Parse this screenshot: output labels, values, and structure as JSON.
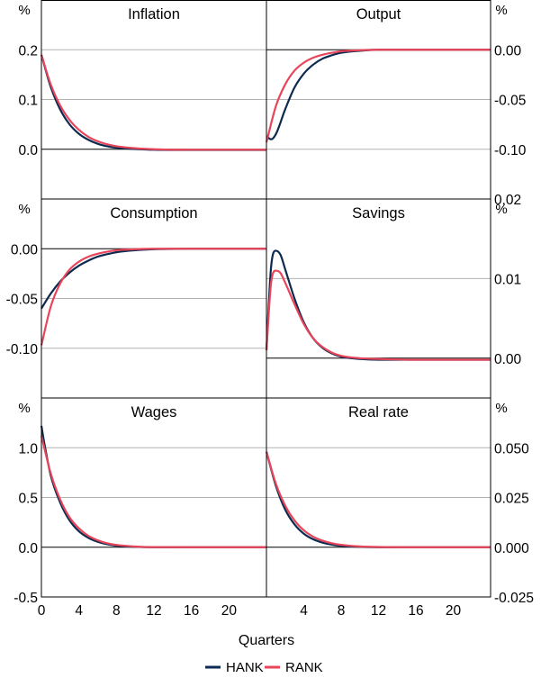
{
  "chart_data": {
    "type": "line",
    "layout": "3x2 grid of panels, left-column y-axis on left, right-column y-axis on right",
    "xlabel": "Quarters",
    "xlim": [
      0,
      24
    ],
    "x_ticks_left": [
      "0",
      "4",
      "8",
      "12",
      "16",
      "20"
    ],
    "x_ticks_right": [
      "4",
      "8",
      "12",
      "16",
      "20"
    ],
    "legend": [
      {
        "name": "HANK",
        "color": "#0d2a4f"
      },
      {
        "name": "RANK",
        "color": "#e8455b"
      }
    ],
    "panels": [
      {
        "title": "Inflation",
        "unit": "%",
        "axis_side": "left",
        "ylim": [
          -0.1,
          0.3
        ],
        "yticks": [
          0.0,
          0.1,
          0.2
        ],
        "ytick_labels": [
          "0.0",
          "0.1",
          "0.2"
        ],
        "series": [
          {
            "name": "HANK",
            "x": [
              0,
              1,
              2,
              3,
              4,
              5,
              6,
              7,
              8,
              10,
              12,
              16,
              20,
              24
            ],
            "values": [
              0.19,
              0.125,
              0.08,
              0.05,
              0.031,
              0.019,
              0.011,
              0.006,
              0.003,
              0.0005,
              -0.001,
              -0.0015,
              -0.0015,
              -0.0015
            ]
          },
          {
            "name": "RANK",
            "x": [
              0,
              1,
              2,
              3,
              4,
              5,
              6,
              7,
              8,
              10,
              12,
              16,
              20,
              24
            ],
            "values": [
              0.19,
              0.13,
              0.088,
              0.059,
              0.039,
              0.025,
              0.016,
              0.01,
              0.006,
              0.002,
              0.0,
              -0.001,
              -0.001,
              -0.001
            ]
          }
        ]
      },
      {
        "title": "Output",
        "unit": "%",
        "axis_side": "right",
        "ylim": [
          -0.15,
          0.05
        ],
        "yticks": [
          0.0,
          -0.05,
          -0.1
        ],
        "ytick_labels": [
          "0.00",
          "-0.05",
          "-0.10"
        ],
        "series": [
          {
            "name": "HANK",
            "x": [
              0,
              0.5,
              1,
              2,
              3,
              4,
              5,
              6,
              7,
              8,
              10,
              12,
              16,
              20,
              24
            ],
            "values": [
              -0.087,
              -0.09,
              -0.085,
              -0.06,
              -0.038,
              -0.024,
              -0.015,
              -0.009,
              -0.0055,
              -0.003,
              -0.001,
              0.0,
              0.0,
              0.0,
              0.0
            ]
          },
          {
            "name": "RANK",
            "x": [
              0,
              1,
              2,
              3,
              4,
              5,
              6,
              7,
              8,
              10,
              12,
              16,
              20,
              24
            ],
            "values": [
              -0.093,
              -0.057,
              -0.035,
              -0.021,
              -0.013,
              -0.008,
              -0.005,
              -0.003,
              -0.0015,
              -0.0005,
              0.0,
              0.0,
              0.0,
              0.0
            ]
          }
        ]
      },
      {
        "title": "Consumption",
        "unit": "%",
        "axis_side": "left",
        "ylim": [
          -0.15,
          0.05
        ],
        "yticks": [
          0.0,
          -0.05,
          -0.1
        ],
        "ytick_labels": [
          "0.00",
          "-0.05",
          "-0.10"
        ],
        "series": [
          {
            "name": "HANK",
            "x": [
              0,
              1,
              2,
              3,
              4,
              5,
              6,
              7,
              8,
              10,
              12,
              16,
              20,
              24
            ],
            "values": [
              -0.06,
              -0.045,
              -0.033,
              -0.024,
              -0.017,
              -0.012,
              -0.008,
              -0.0055,
              -0.0035,
              -0.0015,
              -0.0005,
              0.0,
              0.0,
              0.0
            ]
          },
          {
            "name": "RANK",
            "x": [
              0,
              1,
              2,
              3,
              4,
              5,
              6,
              7,
              8,
              10,
              12,
              16,
              20,
              24
            ],
            "values": [
              -0.097,
              -0.058,
              -0.035,
              -0.021,
              -0.013,
              -0.008,
              -0.005,
              -0.003,
              -0.0015,
              -0.0005,
              0.0,
              0.0,
              0.0,
              0.0
            ]
          }
        ]
      },
      {
        "title": "Savings",
        "unit": "%",
        "axis_side": "right",
        "ylim": [
          -0.005,
          0.02
        ],
        "yticks": [
          0.02,
          0.01,
          0.0
        ],
        "ytick_labels": [
          "0.02",
          "0.01",
          "0.00"
        ],
        "series": [
          {
            "name": "HANK",
            "x": [
              0,
              0.5,
              1,
              1.5,
              2,
              3,
              4,
              5,
              6,
              7,
              8,
              10,
              12,
              16,
              20,
              24
            ],
            "values": [
              0.001,
              0.0115,
              0.0135,
              0.013,
              0.0112,
              0.0075,
              0.0045,
              0.0025,
              0.0013,
              0.0006,
              0.0002,
              -0.0001,
              -0.0002,
              -0.0002,
              -0.0002,
              -0.0002
            ]
          },
          {
            "name": "RANK",
            "x": [
              0,
              0.5,
              1,
              1.5,
              2,
              3,
              4,
              5,
              6,
              7,
              8,
              10,
              12,
              16,
              20,
              24
            ],
            "values": [
              0.001,
              0.0095,
              0.011,
              0.0107,
              0.0095,
              0.0068,
              0.0043,
              0.0025,
              0.0014,
              0.0007,
              0.0003,
              0.0,
              -0.0001,
              -0.0002,
              -0.0002,
              -0.0002
            ]
          }
        ]
      },
      {
        "title": "Wages",
        "unit": "%",
        "axis_side": "left",
        "ylim": [
          -0.5,
          1.5
        ],
        "yticks": [
          1.0,
          0.5,
          0.0,
          -0.5
        ],
        "ytick_labels": [
          "1.0",
          "0.5",
          "0.0",
          "-0.5"
        ],
        "series": [
          {
            "name": "HANK",
            "x": [
              0,
              0.3,
              1,
              2,
              3,
              4,
              5,
              6,
              7,
              8,
              10,
              12,
              16,
              20,
              24
            ],
            "values": [
              1.22,
              1.05,
              0.72,
              0.45,
              0.27,
              0.16,
              0.095,
              0.055,
              0.03,
              0.016,
              0.004,
              0.0,
              0.0,
              0.0,
              0.0
            ]
          },
          {
            "name": "RANK",
            "x": [
              0,
              1,
              2,
              3,
              4,
              5,
              6,
              7,
              8,
              10,
              12,
              16,
              20,
              24
            ],
            "values": [
              1.12,
              0.74,
              0.48,
              0.3,
              0.19,
              0.115,
              0.07,
              0.04,
              0.023,
              0.007,
              0.001,
              0.0,
              0.0,
              0.0
            ]
          }
        ]
      },
      {
        "title": "Real rate",
        "unit": "%",
        "axis_side": "right",
        "ylim": [
          -0.025,
          0.075
        ],
        "yticks": [
          0.05,
          0.025,
          0.0,
          -0.025
        ],
        "ytick_labels": [
          "0.050",
          "0.025",
          "0.000",
          "-0.025"
        ],
        "series": [
          {
            "name": "HANK",
            "x": [
              0,
              1,
              2,
              3,
              4,
              5,
              6,
              7,
              8,
              10,
              12,
              16,
              20,
              24
            ],
            "values": [
              0.048,
              0.031,
              0.019,
              0.0115,
              0.0068,
              0.004,
              0.0023,
              0.0013,
              0.0007,
              0.0002,
              0.0,
              0.0,
              0.0,
              0.0
            ]
          },
          {
            "name": "RANK",
            "x": [
              0,
              1,
              2,
              3,
              4,
              5,
              6,
              7,
              8,
              10,
              12,
              16,
              20,
              24
            ],
            "values": [
              0.048,
              0.032,
              0.021,
              0.0135,
              0.0085,
              0.0053,
              0.0033,
              0.002,
              0.0012,
              0.0004,
              0.0001,
              0.0,
              0.0,
              0.0
            ]
          }
        ]
      }
    ]
  }
}
